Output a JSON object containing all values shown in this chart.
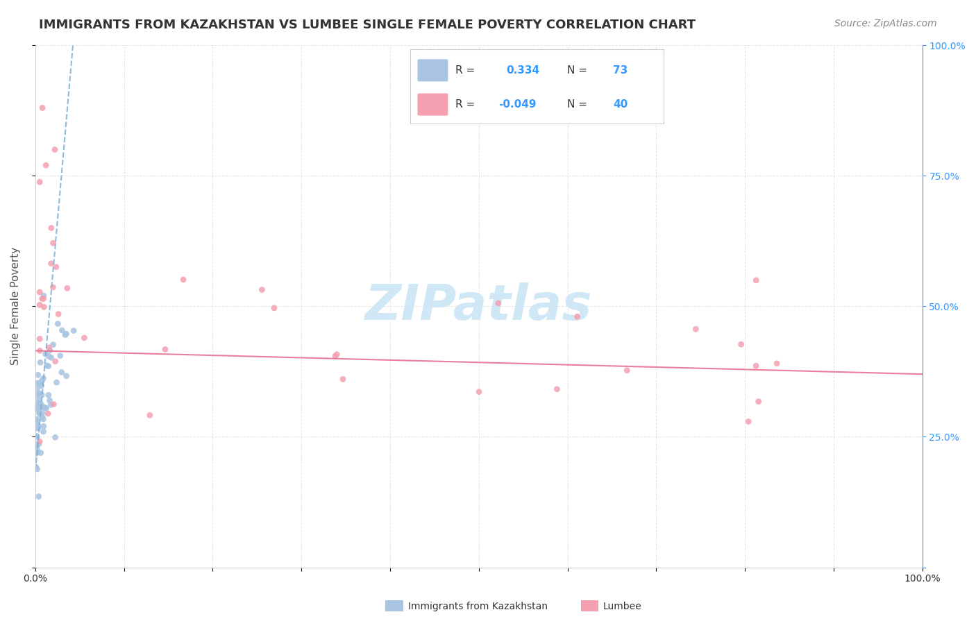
{
  "title": "IMMIGRANTS FROM KAZAKHSTAN VS LUMBEE SINGLE FEMALE POVERTY CORRELATION CHART",
  "source": "Source: ZipAtlas.com",
  "ylabel": "Single Female Poverty",
  "legend_blue_label": "Immigrants from Kazakhstan",
  "legend_pink_label": "Lumbee",
  "blue_color": "#a8c4e0",
  "blue_line_color": "#7bafd4",
  "pink_color": "#f4a0b0",
  "pink_line_color": "#e87090",
  "accent_blue": "#3399ff",
  "grid_color": "#dddddd",
  "background_color": "#ffffff",
  "watermark_color": "#d0e8f5",
  "title_fontsize": 13,
  "source_fontsize": 10,
  "label_fontsize": 11,
  "tick_fontsize": 10
}
